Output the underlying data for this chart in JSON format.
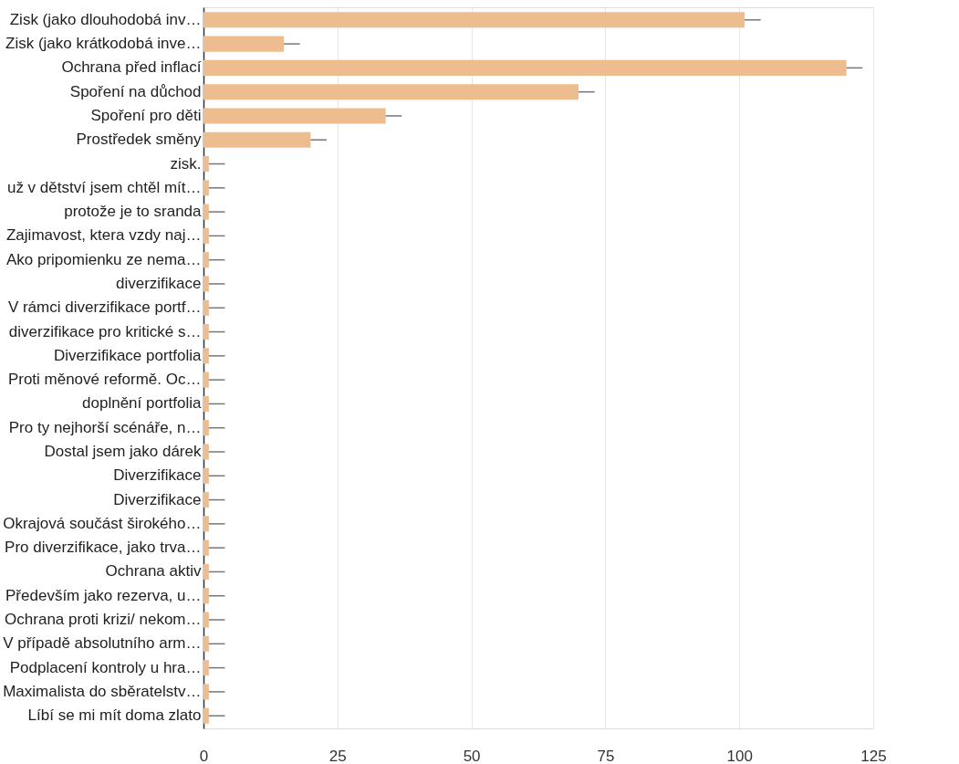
{
  "chart_data": {
    "type": "bar",
    "orientation": "horizontal",
    "categories": [
      "Zisk (jako dlouhodobá inv…",
      "Zisk (jako krátkodobá inve…",
      "Ochrana před inflací",
      "Spoření na důchod",
      "Spoření pro děti",
      "Prostředek směny",
      "zisk.",
      "už v dětství jsem chtěl mít…",
      "protože je to sranda",
      "Zajimavost, ktera vzdy naj…",
      "Ako pripomienku ze nema…",
      "diverzifikace",
      "V rámci diverzifikace portf…",
      "diverzifikace pro kritické s…",
      "Diverzifikace portfolia",
      "Proti měnové reformě. Oc…",
      "doplnění portfolia",
      "Pro ty nejhorší scénáře, n…",
      "Dostal jsem jako dárek",
      "Diverzifikace",
      "Diverzifikace",
      "Okrajová součást širokého…",
      "Pro diverzifikace, jako trva…",
      "Ochrana aktiv",
      "Především jako rezerva, u…",
      "Ochrana proti krizi/ nekom…",
      "V případě absolutního arm…",
      "Podplacení kontroly u hra…",
      "Maximalista do sběratelstv…",
      "Líbí se mi mít doma zlato"
    ],
    "values": [
      101,
      15,
      120,
      70,
      34,
      20,
      1,
      1,
      1,
      1,
      1,
      1,
      1,
      1,
      1,
      1,
      1,
      1,
      1,
      1,
      1,
      1,
      1,
      1,
      1,
      1,
      1,
      1,
      1,
      1
    ],
    "errors": [
      [
        101,
        104
      ],
      [
        15,
        18
      ],
      [
        120,
        123
      ],
      [
        70,
        73
      ],
      [
        34,
        37
      ],
      [
        20,
        23
      ],
      [
        1,
        4
      ],
      [
        1,
        4
      ],
      [
        1,
        4
      ],
      [
        1,
        4
      ],
      [
        1,
        4
      ],
      [
        1,
        4
      ],
      [
        1,
        4
      ],
      [
        1,
        4
      ],
      [
        1,
        4
      ],
      [
        1,
        4
      ],
      [
        1,
        4
      ],
      [
        1,
        4
      ],
      [
        1,
        4
      ],
      [
        1,
        4
      ],
      [
        1,
        4
      ],
      [
        1,
        4
      ],
      [
        1,
        4
      ],
      [
        1,
        4
      ],
      [
        1,
        4
      ],
      [
        1,
        4
      ],
      [
        1,
        4
      ],
      [
        1,
        4
      ],
      [
        1,
        4
      ],
      [
        1,
        4
      ]
    ],
    "color": "#eebd8f",
    "xlim": [
      0,
      125
    ],
    "xticks": [
      0,
      25,
      50,
      75,
      100,
      125
    ],
    "grid": "x"
  }
}
